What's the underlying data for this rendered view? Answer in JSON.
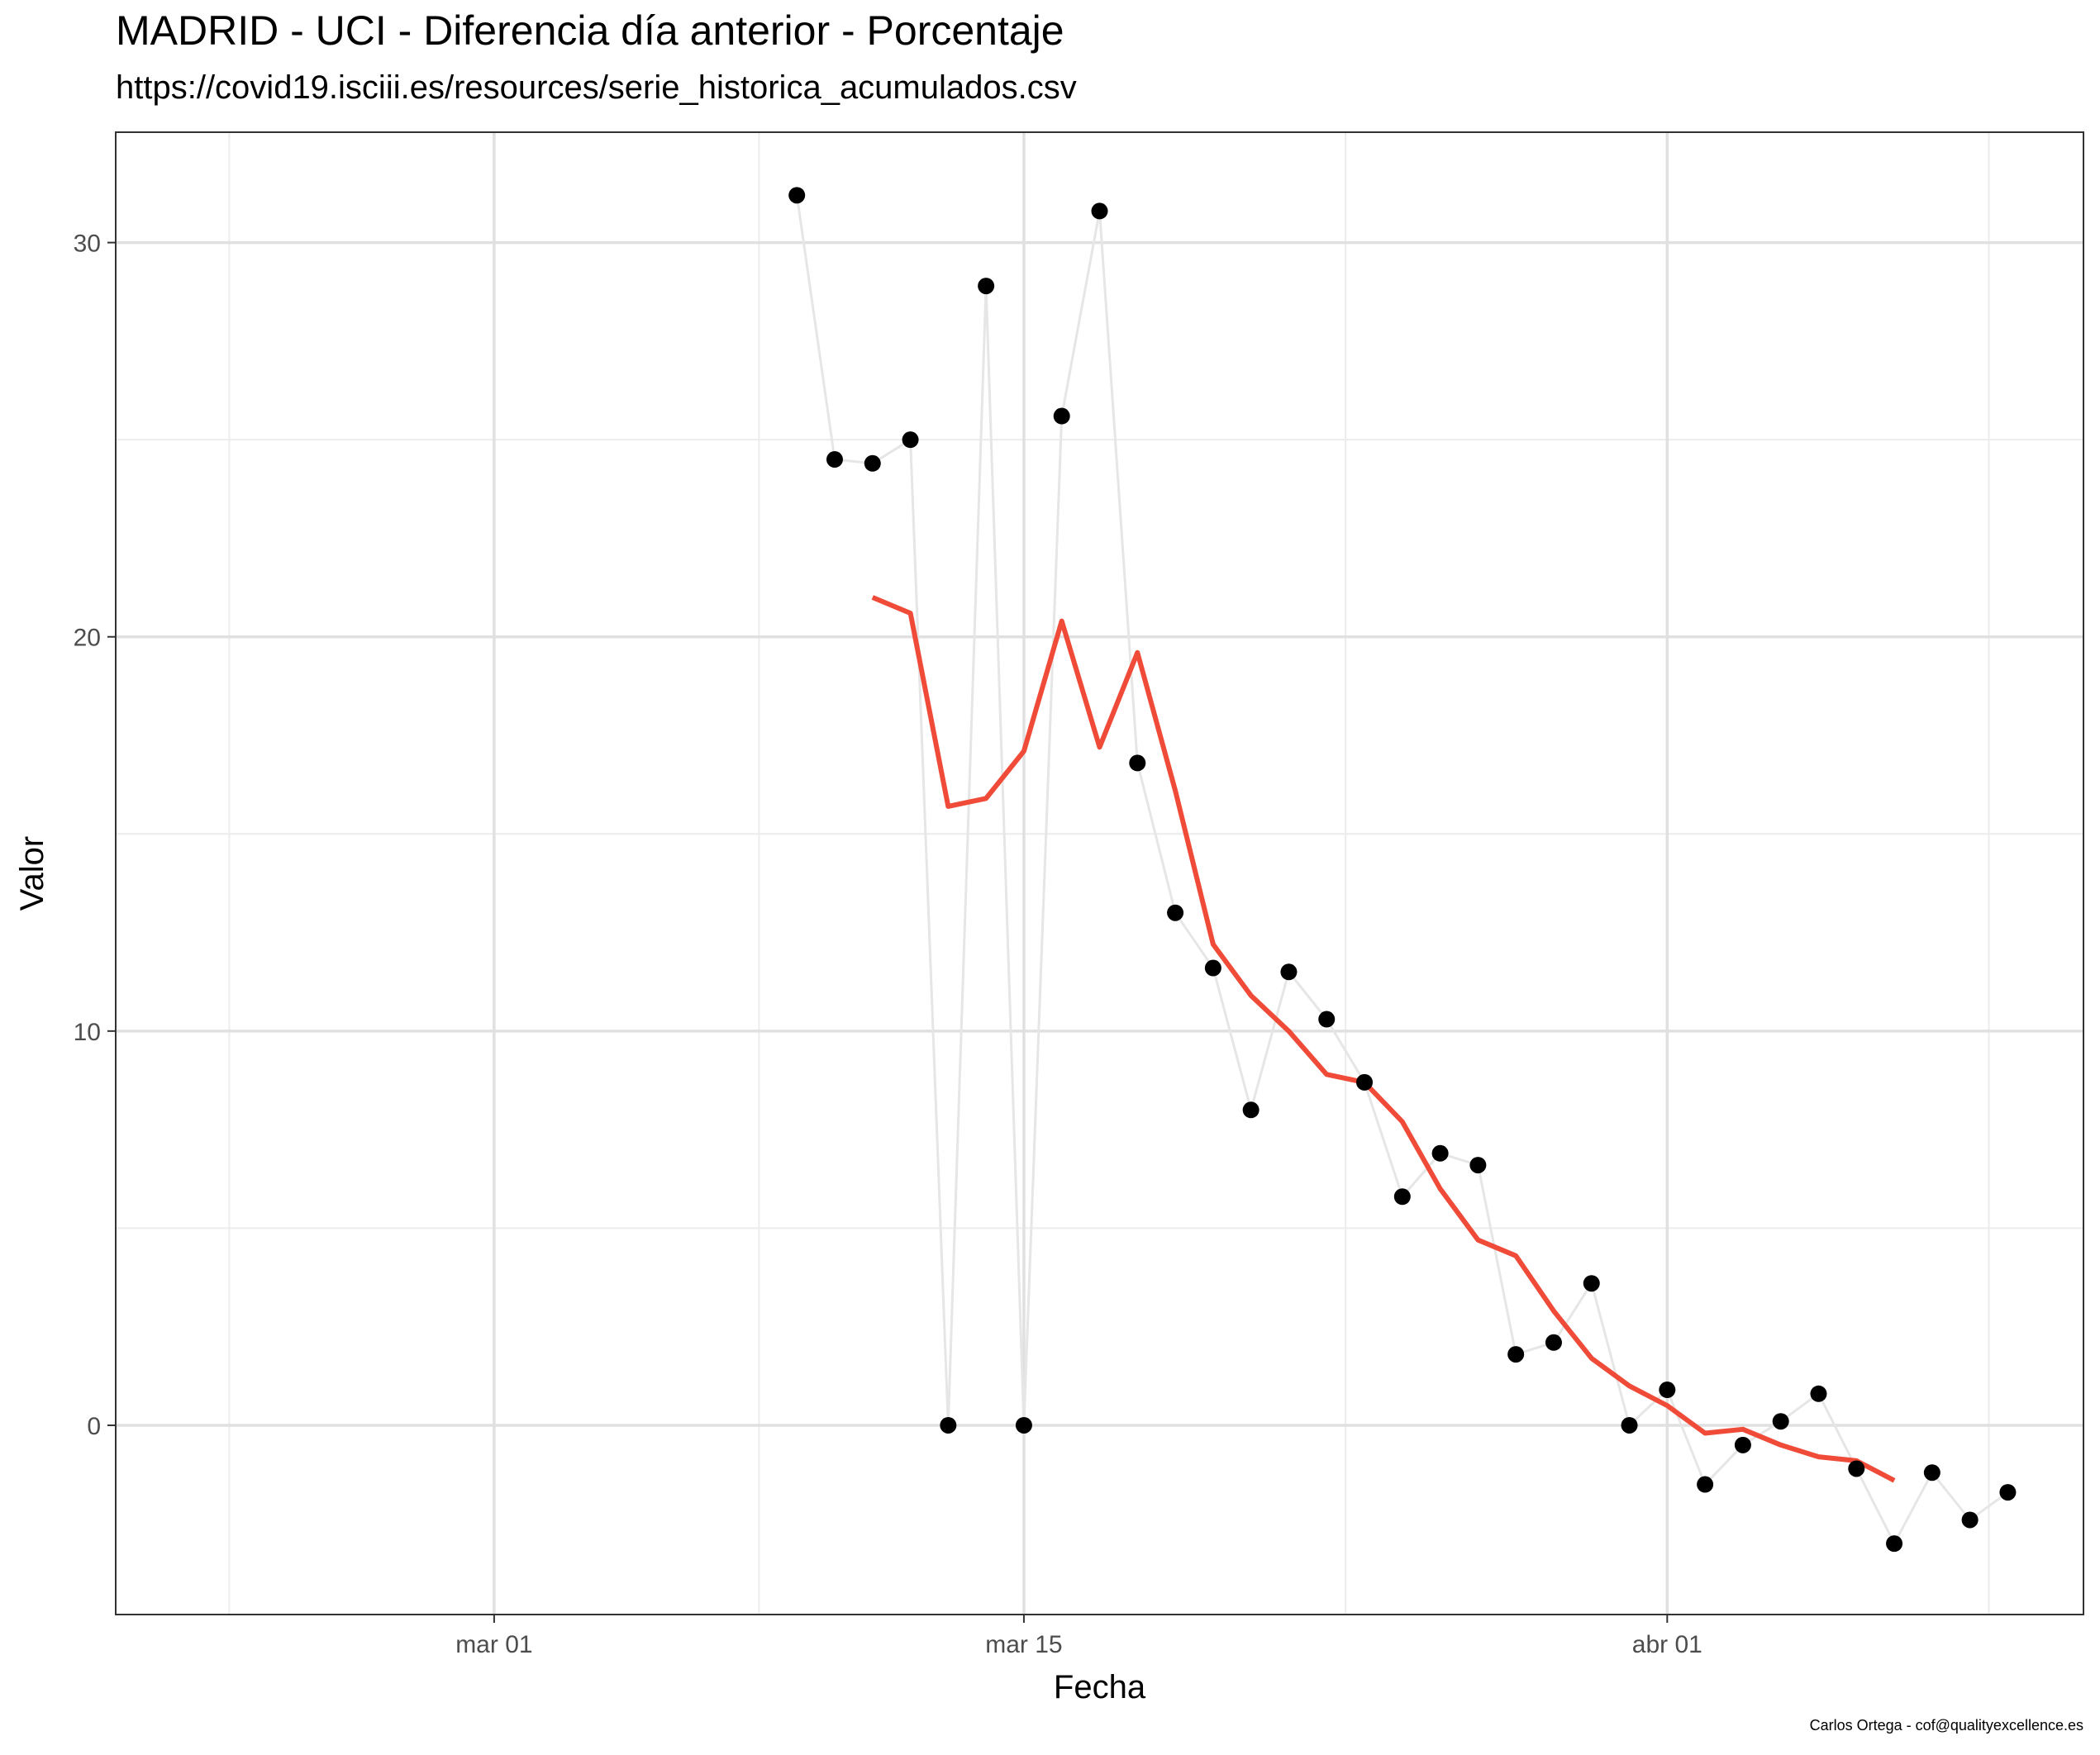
{
  "chart_data": {
    "type": "line",
    "title": "MADRID - UCI - Diferencia día anterior - Porcentaje",
    "subtitle": "https://covid19.isciii.es/resources/serie_historica_acumulados.csv",
    "xlabel": "Fecha",
    "ylabel": "Valor",
    "caption": "Carlos Ortega - cof@qualityexcellence.es",
    "x_ticks": [
      {
        "date": "2020-03-01",
        "label": "mar 01"
      },
      {
        "date": "2020-03-15",
        "label": "mar 15"
      },
      {
        "date": "2020-04-01",
        "label": "abr 01"
      }
    ],
    "y_ticks": [
      0,
      10,
      20,
      30
    ],
    "xlim": [
      "2020-02-20",
      "2020-04-12"
    ],
    "ylim": [
      -4.8,
      32.8
    ],
    "grid": true,
    "colors": {
      "points": "#000000",
      "raw_line": "#e6e6e6",
      "smoothed_line": "#f04b38",
      "grid_major": "#e0e0e0",
      "grid_minor": "#ececec"
    },
    "series": [
      {
        "style": "points-and-line",
        "x": [
          "2020-03-09",
          "2020-03-10",
          "2020-03-11",
          "2020-03-12",
          "2020-03-13",
          "2020-03-14",
          "2020-03-15",
          "2020-03-16",
          "2020-03-17",
          "2020-03-18",
          "2020-03-19",
          "2020-03-20",
          "2020-03-21",
          "2020-03-22",
          "2020-03-23",
          "2020-03-24",
          "2020-03-25",
          "2020-03-26",
          "2020-03-27",
          "2020-03-28",
          "2020-03-29",
          "2020-03-30",
          "2020-03-31",
          "2020-04-01",
          "2020-04-02",
          "2020-04-03",
          "2020-04-04",
          "2020-04-05",
          "2020-04-06",
          "2020-04-07",
          "2020-04-08",
          "2020-04-09",
          "2020-04-10"
        ],
        "values": [
          31.2,
          24.5,
          24.4,
          25.0,
          0.0,
          28.9,
          0.0,
          25.6,
          30.8,
          16.8,
          13.0,
          11.6,
          8.0,
          11.5,
          10.3,
          8.7,
          5.8,
          6.9,
          6.6,
          1.8,
          2.1,
          3.6,
          0.0,
          0.9,
          -1.5,
          -0.5,
          0.1,
          0.8,
          -1.1,
          -3.0,
          -1.2,
          -2.4,
          -1.7
        ]
      },
      {
        "style": "smoothed-line",
        "x": [
          "2020-03-11",
          "2020-03-12",
          "2020-03-13",
          "2020-03-14",
          "2020-03-15",
          "2020-03-16",
          "2020-03-17",
          "2020-03-18",
          "2020-03-19",
          "2020-03-20",
          "2020-03-21",
          "2020-03-22",
          "2020-03-23",
          "2020-03-24",
          "2020-03-25",
          "2020-03-26",
          "2020-03-27",
          "2020-03-28",
          "2020-03-29",
          "2020-03-30",
          "2020-03-31",
          "2020-04-01",
          "2020-04-02",
          "2020-04-03",
          "2020-04-04",
          "2020-04-05",
          "2020-04-06",
          "2020-04-07"
        ],
        "values": [
          21.0,
          20.6,
          15.7,
          15.9,
          17.1,
          20.4,
          17.2,
          19.6,
          16.1,
          12.2,
          10.9,
          10.0,
          8.9,
          8.7,
          7.7,
          6.0,
          4.7,
          4.3,
          2.9,
          1.7,
          1.0,
          0.5,
          -0.2,
          -0.1,
          -0.5,
          -0.8,
          -0.9,
          -1.4
        ]
      }
    ]
  }
}
